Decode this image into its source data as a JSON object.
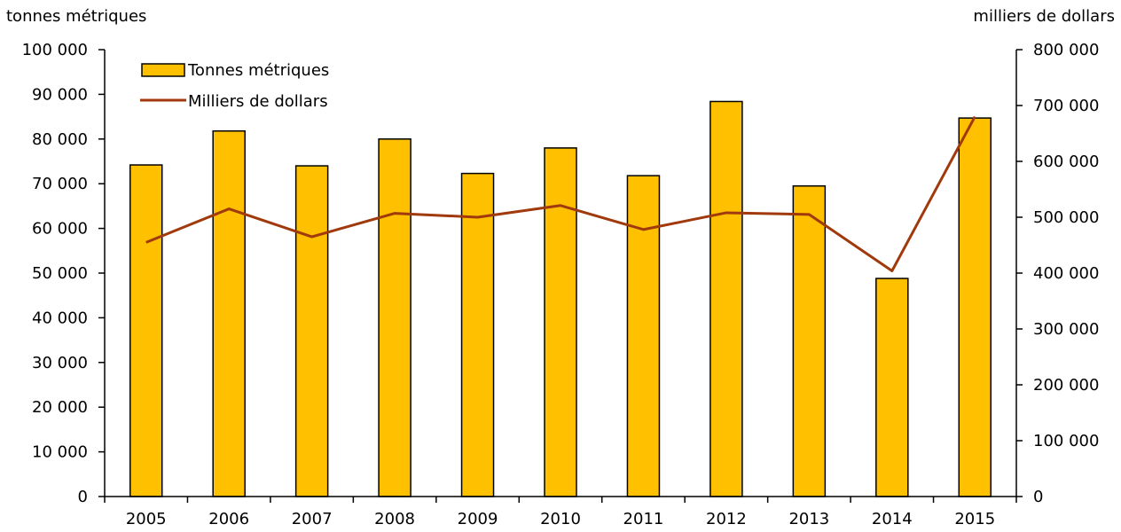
{
  "chart_data": {
    "type": "bar",
    "categories": [
      "2005",
      "2006",
      "2007",
      "2008",
      "2009",
      "2010",
      "2011",
      "2012",
      "2013",
      "2014",
      "2015"
    ],
    "series": [
      {
        "name": "Tonnes métriques",
        "type": "bar",
        "axis": "left",
        "color": "#FFC000",
        "values": [
          74200,
          81800,
          74000,
          80000,
          72300,
          78000,
          71800,
          88400,
          69500,
          48800,
          84700
        ]
      },
      {
        "name": "Milliers de dollars",
        "type": "line",
        "axis": "right",
        "color": "#A0390B",
        "values": [
          455000,
          515000,
          465000,
          507000,
          500000,
          521000,
          478000,
          508000,
          505000,
          404000,
          680000
        ]
      }
    ],
    "y_left": {
      "label": "tonnes métriques",
      "range": [
        0,
        100000
      ],
      "ticks": [
        "0",
        "10 000",
        "20 000",
        "30 000",
        "40 000",
        "50 000",
        "60 000",
        "70 000",
        "80 000",
        "90 000",
        "100 000"
      ]
    },
    "y_right": {
      "label": "milliers de dollars",
      "range": [
        0,
        800000
      ],
      "ticks": [
        "0",
        "100 000",
        "200 000",
        "300 000",
        "400 000",
        "500 000",
        "600 000",
        "700 000",
        "800 000"
      ]
    },
    "grid": false,
    "legend_position": "top-left"
  }
}
